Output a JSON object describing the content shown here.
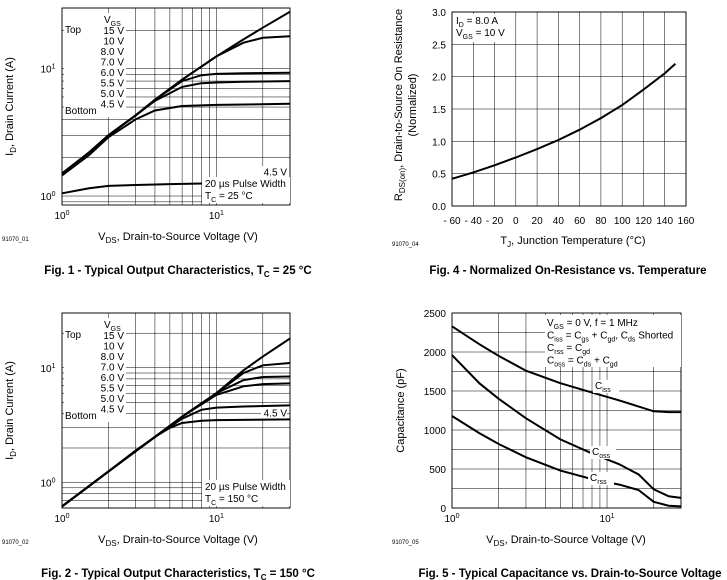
{
  "chart_data": [
    {
      "id": "fig1",
      "type": "line",
      "xscale": "log",
      "yscale": "log",
      "xlim": [
        1,
        30
      ],
      "ylim": [
        0.85,
        30
      ],
      "xticks": [
        {
          "v": 1,
          "b": "10",
          "e": "0"
        },
        {
          "v": 10,
          "b": "10",
          "e": "1"
        }
      ],
      "yticks": [
        {
          "v": 1,
          "b": "10",
          "e": "0"
        },
        {
          "v": 10,
          "b": "10",
          "e": "1"
        }
      ],
      "ylabel": {
        "pre": "I",
        "sub": "D",
        "post": ", Drain Current (A)"
      },
      "xlabel": {
        "pre": "V",
        "sub": "DS",
        "post": ", Drain-to-Source Voltage (V)"
      },
      "code": "91070_01",
      "caption": {
        "pre": "Fig. 1 - Typical Output Characteristics, T",
        "sub": "C",
        "post": " = 25 °C"
      },
      "legend": {
        "header_pre": "V",
        "header_sub": "GS",
        "top": "Top",
        "bottom": "Bottom",
        "voltages": [
          "15 V",
          "10 V",
          "8.0 V",
          "7.0 V",
          "6.0 V",
          "5.5 V",
          "5.0 V",
          "4.5 V"
        ]
      },
      "notes": [
        "20 µs Pulse Width",
        "T_C = 25 °C"
      ],
      "notes_parts": [
        {
          "pre": "20 µs Pulse Width",
          "sub": "",
          "post": ""
        },
        {
          "pre": "T",
          "sub": "C",
          "post": " = 25 °C"
        }
      ],
      "curve_label": "4.5 V",
      "series": [
        {
          "name": "15 V",
          "points": [
            [
              1,
              1.5
            ],
            [
              1.5,
              2.2
            ],
            [
              2,
              3
            ],
            [
              3,
              4.3
            ],
            [
              4,
              5.7
            ],
            [
              6,
              8.2
            ],
            [
              10,
              12.5
            ],
            [
              15,
              17
            ],
            [
              20,
              21
            ],
            [
              30,
              28
            ]
          ]
        },
        {
          "name": "10 V",
          "points": [
            [
              1,
              1.5
            ],
            [
              1.5,
              2.2
            ],
            [
              2,
              3
            ],
            [
              3,
              4.3
            ],
            [
              4,
              5.7
            ],
            [
              6,
              8.2
            ],
            [
              10,
              12.5
            ],
            [
              15,
              16
            ],
            [
              20,
              17.5
            ],
            [
              30,
              18
            ]
          ]
        },
        {
          "name": "8.0 V",
          "points": [
            [
              1,
              1.5
            ],
            [
              1.5,
              2.2
            ],
            [
              2,
              3
            ],
            [
              3,
              4.3
            ],
            [
              4,
              5.7
            ],
            [
              6,
              8
            ],
            [
              8,
              8.9
            ],
            [
              10,
              9.1
            ],
            [
              15,
              9.2
            ],
            [
              30,
              9.3
            ]
          ]
        },
        {
          "name": "7.0 V",
          "points": [
            [
              1,
              1.5
            ],
            [
              1.5,
              2.2
            ],
            [
              2,
              3
            ],
            [
              3,
              4.3
            ],
            [
              4,
              5.6
            ],
            [
              6,
              7.2
            ],
            [
              8,
              7.7
            ],
            [
              10,
              7.8
            ],
            [
              15,
              7.9
            ],
            [
              30,
              8
            ]
          ]
        },
        {
          "name": "5.5 V",
          "points": [
            [
              1,
              1.45
            ],
            [
              1.5,
              2.1
            ],
            [
              2,
              2.9
            ],
            [
              3,
              4
            ],
            [
              4,
              4.7
            ],
            [
              6,
              5.1
            ],
            [
              10,
              5.2
            ],
            [
              30,
              5.3
            ]
          ]
        },
        {
          "name": "4.5 V",
          "points": [
            [
              1,
              1.05
            ],
            [
              1.5,
              1.15
            ],
            [
              2,
              1.2
            ],
            [
              3,
              1.22
            ],
            [
              5,
              1.24
            ],
            [
              10,
              1.26
            ],
            [
              20,
              1.3
            ],
            [
              30,
              1.33
            ]
          ]
        }
      ]
    },
    {
      "id": "fig2",
      "type": "line",
      "xscale": "log",
      "yscale": "log",
      "xlim": [
        1,
        30
      ],
      "ylim": [
        0.6,
        30
      ],
      "xticks": [
        {
          "v": 1,
          "b": "10",
          "e": "0"
        },
        {
          "v": 10,
          "b": "10",
          "e": "1"
        }
      ],
      "yticks": [
        {
          "v": 1,
          "b": "10",
          "e": "0"
        },
        {
          "v": 10,
          "b": "10",
          "e": "1"
        }
      ],
      "ylabel": {
        "pre": "I",
        "sub": "D",
        "post": ", Drain Current (A)"
      },
      "xlabel": {
        "pre": "V",
        "sub": "DS",
        "post": ", Drain-to-Source Voltage (V)"
      },
      "code": "91070_02",
      "caption": {
        "pre": "Fig. 2 - Typical Output Characteristics, T",
        "sub": "C",
        "post": " = 150 °C"
      },
      "legend": {
        "header_pre": "V",
        "header_sub": "GS",
        "top": "Top",
        "bottom": "Bottom",
        "voltages": [
          "15 V",
          "10 V",
          "8.0 V",
          "7.0 V",
          "6.0 V",
          "5.5 V",
          "5.0 V",
          "4.5 V"
        ]
      },
      "notes": [
        "20 µs Pulse Width",
        "T_C = 150 °C"
      ],
      "notes_parts": [
        {
          "pre": "20 µs Pulse Width",
          "sub": "",
          "post": ""
        },
        {
          "pre": "T",
          "sub": "C",
          "post": " = 150 °C"
        }
      ],
      "curve_label": "4.5 V",
      "series": [
        {
          "name": "15 V",
          "points": [
            [
              1,
              0.62
            ],
            [
              2,
              1.25
            ],
            [
              4,
              2.5
            ],
            [
              6,
              3.75
            ],
            [
              10,
              6
            ],
            [
              15,
              9.5
            ],
            [
              20,
              12.5
            ],
            [
              30,
              18
            ]
          ]
        },
        {
          "name": "10 V",
          "points": [
            [
              1,
              0.62
            ],
            [
              2,
              1.25
            ],
            [
              4,
              2.5
            ],
            [
              6,
              3.75
            ],
            [
              10,
              6
            ],
            [
              15,
              9
            ],
            [
              20,
              10.5
            ],
            [
              30,
              11
            ]
          ]
        },
        {
          "name": "8.0 V",
          "points": [
            [
              1,
              0.62
            ],
            [
              2,
              1.25
            ],
            [
              4,
              2.5
            ],
            [
              6,
              3.75
            ],
            [
              10,
              6
            ],
            [
              15,
              7.8
            ],
            [
              20,
              8.3
            ],
            [
              30,
              8.4
            ]
          ]
        },
        {
          "name": "7.0 V",
          "points": [
            [
              1,
              0.62
            ],
            [
              2,
              1.25
            ],
            [
              4,
              2.5
            ],
            [
              6,
              3.75
            ],
            [
              10,
              5.8
            ],
            [
              15,
              6.9
            ],
            [
              20,
              7.2
            ],
            [
              30,
              7.3
            ]
          ]
        },
        {
          "name": "5.5 V",
          "points": [
            [
              1,
              0.62
            ],
            [
              2,
              1.25
            ],
            [
              4,
              2.5
            ],
            [
              6,
              3.6
            ],
            [
              8,
              4.3
            ],
            [
              10,
              4.5
            ],
            [
              15,
              4.6
            ],
            [
              30,
              4.7
            ]
          ]
        },
        {
          "name": "4.5 V",
          "points": [
            [
              1,
              0.62
            ],
            [
              2,
              1.25
            ],
            [
              3,
              1.9
            ],
            [
              4,
              2.5
            ],
            [
              5,
              3
            ],
            [
              6,
              3.3
            ],
            [
              8,
              3.45
            ],
            [
              10,
              3.5
            ],
            [
              30,
              3.55
            ]
          ]
        }
      ]
    },
    {
      "id": "fig4",
      "type": "line",
      "xscale": "linear",
      "yscale": "linear",
      "xlim": [
        -60,
        160
      ],
      "ylim": [
        0,
        3
      ],
      "xticks": [
        -60,
        -40,
        -20,
        0,
        20,
        40,
        60,
        80,
        100,
        120,
        140,
        160
      ],
      "xtick_labels": [
        "- 60",
        "- 40",
        "- 20",
        "0",
        "20",
        "40",
        "60",
        "80",
        "100",
        "120",
        "140",
        "160"
      ],
      "yticks": [
        0,
        0.5,
        1,
        1.5,
        2,
        2.5,
        3
      ],
      "ytick_labels": [
        "0.0",
        "0.5",
        "1.0",
        "1.5",
        "2.0",
        "2.5",
        "3.0"
      ],
      "ylabel_line1": {
        "pre": "R",
        "sub": "DS(on)",
        "post": ", Drain-to-Source On Resistance"
      },
      "ylabel_line2": "(Normalized)",
      "xlabel": {
        "pre": "T",
        "sub": "J",
        "post": ", Junction Temperature (°C)"
      },
      "code": "91070_04",
      "caption": {
        "pre": "Fig. 4 -  Normalized On-Resistance vs. Temperature",
        "sub": "",
        "post": ""
      },
      "annotations": [
        "I_D = 8.0 A",
        "V_GS = 10 V"
      ],
      "annotation_parts": [
        {
          "pre": "I",
          "sub": "D",
          "post": " = 8.0 A"
        },
        {
          "pre": "V",
          "sub": "GS",
          "post": " = 10 V"
        }
      ],
      "series": [
        {
          "name": "RDS(on)",
          "points": [
            [
              -60,
              0.42
            ],
            [
              -40,
              0.52
            ],
            [
              -20,
              0.63
            ],
            [
              0,
              0.75
            ],
            [
              20,
              0.88
            ],
            [
              40,
              1.02
            ],
            [
              60,
              1.18
            ],
            [
              80,
              1.36
            ],
            [
              100,
              1.56
            ],
            [
              120,
              1.8
            ],
            [
              140,
              2.05
            ],
            [
              150,
              2.2
            ]
          ]
        }
      ]
    },
    {
      "id": "fig5",
      "type": "line",
      "xscale": "log",
      "yscale": "linear",
      "xlim": [
        1,
        30
      ],
      "ylim": [
        0,
        2500
      ],
      "xticks": [
        {
          "v": 1,
          "b": "10",
          "e": "0"
        },
        {
          "v": 10,
          "b": "10",
          "e": "1"
        }
      ],
      "yticks": [
        0,
        500,
        1000,
        1500,
        2000,
        2500
      ],
      "ytick_labels": [
        "0",
        "500",
        "1000",
        "1500",
        "2000",
        "2500"
      ],
      "ylabel": {
        "pre": "Capacitance (pF)",
        "sub": "",
        "post": ""
      },
      "xlabel": {
        "pre": "V",
        "sub": "DS",
        "post": ", Drain-to-Source Voltage (V)"
      },
      "code": "91070_05",
      "caption": {
        "pre": "Fig. 5 - Typical Capacitance vs. Drain-to-Source Voltage",
        "sub": "",
        "post": ""
      },
      "annotations": [
        "V_GS = 0 V, f = 1 MHz",
        "C_iss = C_gs + C_gd, C_ds Shorted",
        "C_rss = C_gd",
        "C_oss = C_ds + C_gd"
      ],
      "annotation_parts": [
        [
          {
            "t": "V"
          },
          {
            "s": "GS"
          },
          {
            "t": " = 0 V, f = 1 MHz"
          }
        ],
        [
          {
            "t": "C"
          },
          {
            "s": "iss"
          },
          {
            "t": " = C"
          },
          {
            "s": "gs"
          },
          {
            "t": " + C"
          },
          {
            "s": "gd"
          },
          {
            "t": ", C"
          },
          {
            "s": "ds"
          },
          {
            "t": " Shorted"
          }
        ],
        [
          {
            "t": "C"
          },
          {
            "s": "rss"
          },
          {
            "t": " = C"
          },
          {
            "s": "gd"
          }
        ],
        [
          {
            "t": "C"
          },
          {
            "s": "oss"
          },
          {
            "t": " = C"
          },
          {
            "s": "ds"
          },
          {
            "t": " + C"
          },
          {
            "s": "gd"
          }
        ]
      ],
      "series": [
        {
          "name": "Ciss",
          "label_pre": "C",
          "label_sub": "iss",
          "points": [
            [
              1,
              2330
            ],
            [
              1.5,
              2100
            ],
            [
              2,
              1950
            ],
            [
              3,
              1760
            ],
            [
              5,
              1600
            ],
            [
              8,
              1480
            ],
            [
              12,
              1380
            ],
            [
              16,
              1300
            ],
            [
              20,
              1240
            ],
            [
              25,
              1230
            ],
            [
              30,
              1230
            ]
          ]
        },
        {
          "name": "Coss",
          "label_pre": "C",
          "label_sub": "oss",
          "points": [
            [
              1,
              1960
            ],
            [
              1.5,
              1600
            ],
            [
              2,
              1400
            ],
            [
              3,
              1150
            ],
            [
              5,
              880
            ],
            [
              8,
              700
            ],
            [
              12,
              560
            ],
            [
              16,
              430
            ],
            [
              20,
              240
            ],
            [
              25,
              150
            ],
            [
              30,
              130
            ]
          ]
        },
        {
          "name": "Crss",
          "label_pre": "C",
          "label_sub": "rss",
          "points": [
            [
              1,
              1180
            ],
            [
              1.5,
              960
            ],
            [
              2,
              820
            ],
            [
              3,
              650
            ],
            [
              5,
              480
            ],
            [
              8,
              370
            ],
            [
              12,
              300
            ],
            [
              16,
              230
            ],
            [
              20,
              80
            ],
            [
              25,
              30
            ],
            [
              30,
              20
            ]
          ]
        }
      ]
    }
  ]
}
